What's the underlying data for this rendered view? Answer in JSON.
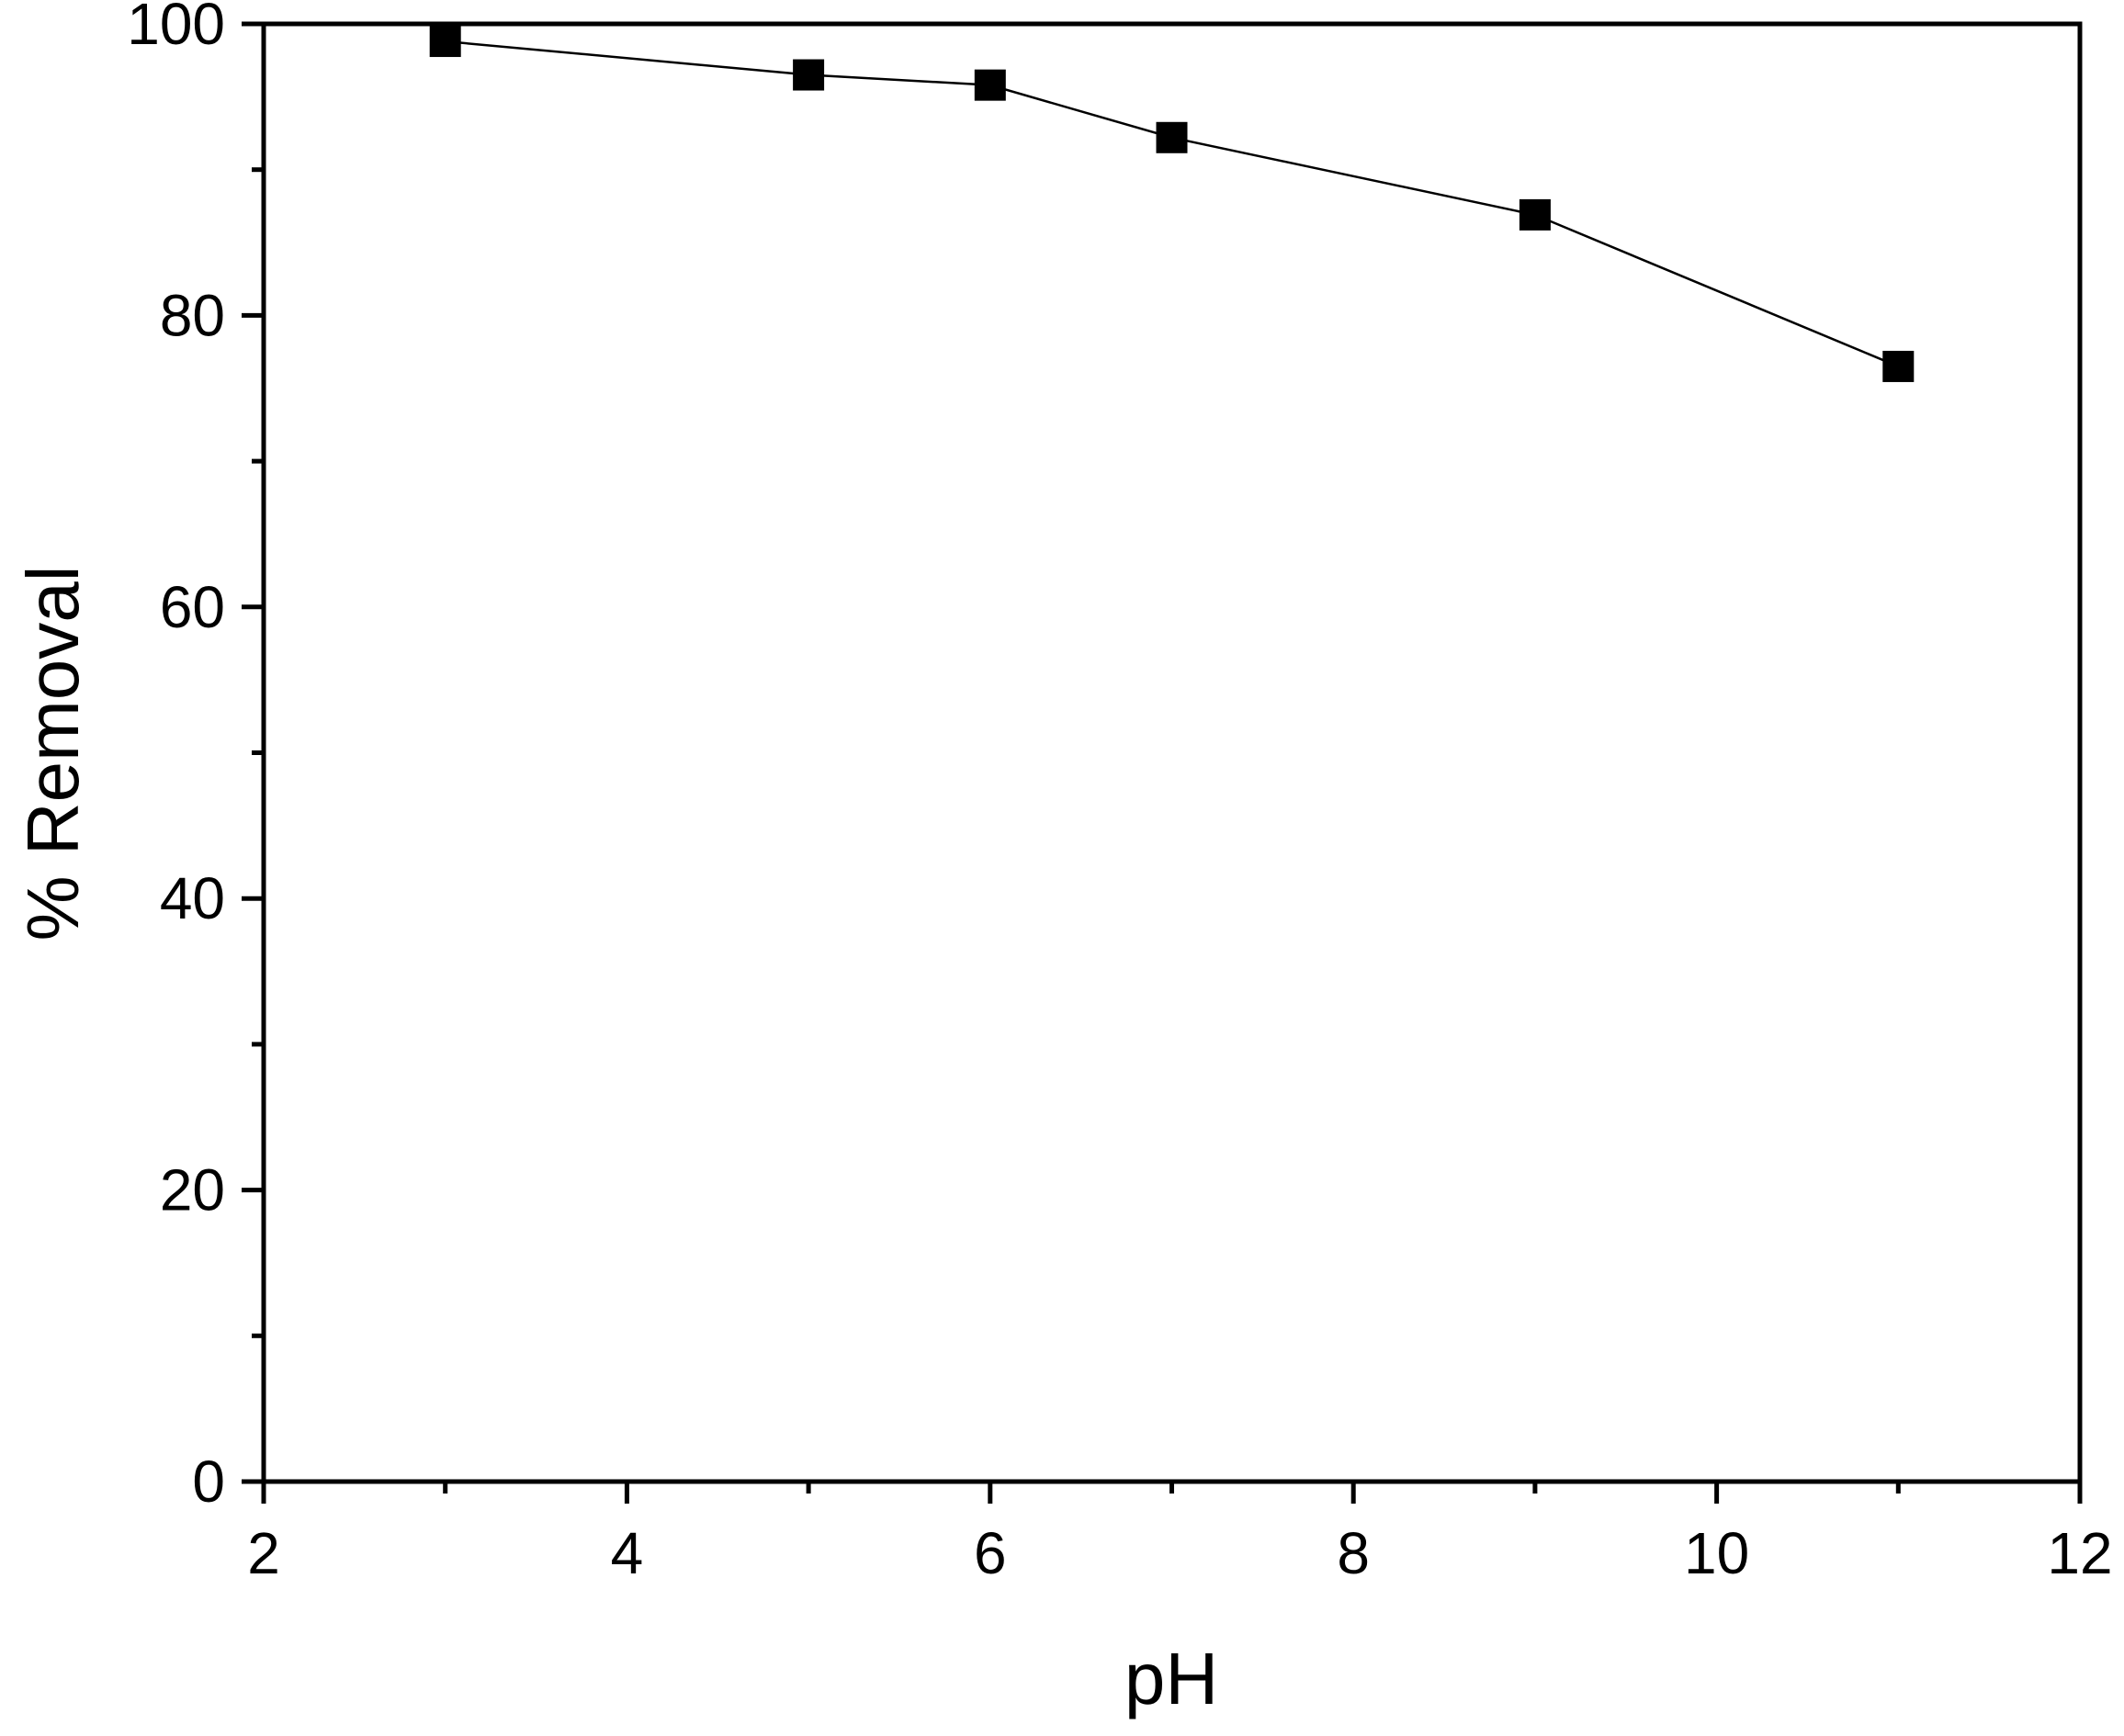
{
  "chart_data": {
    "type": "line",
    "title": "",
    "xlabel": "pH",
    "ylabel": "% Removal",
    "xlim": [
      2,
      12
    ],
    "ylim": [
      0,
      100
    ],
    "x_ticks": [
      2,
      4,
      6,
      8,
      10,
      12
    ],
    "x_minor_ticks": [
      3,
      5,
      7,
      9,
      11
    ],
    "y_ticks": [
      0,
      20,
      40,
      60,
      80,
      100
    ],
    "y_minor_ticks": [
      10,
      30,
      50,
      70,
      90
    ],
    "grid": false,
    "legend": "none",
    "series": [
      {
        "marker": "square",
        "color": "#000000",
        "x": [
          3,
          5,
          6,
          7,
          9,
          11
        ],
        "y": [
          98.8,
          96.5,
          95.8,
          92.2,
          86.9,
          76.5
        ]
      }
    ]
  }
}
